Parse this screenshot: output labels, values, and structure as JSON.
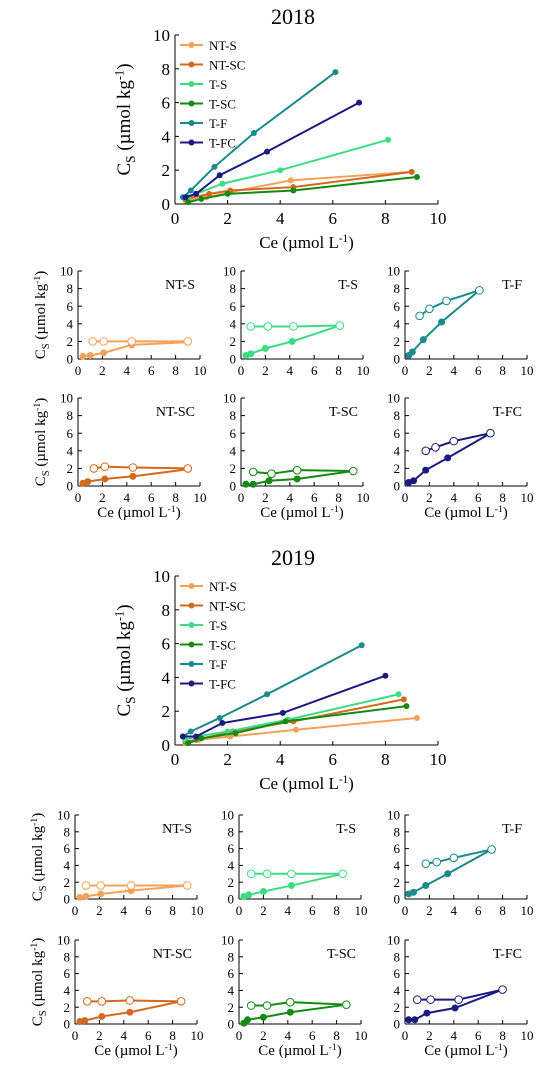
{
  "figure": {
    "title_2018": "2018",
    "title_2019": "2019"
  },
  "colors": {
    "NT-S": "#f4a259",
    "NT-SC": "#d2691e",
    "T-S": "#3ddc84",
    "T-SC": "#138b13",
    "T-F": "#1a8a8a",
    "T-FC": "#1a1a80"
  },
  "labels": {
    "ylabel": "Cs (µmol kg-1)",
    "xlabel": "Ce (µmol L-1)"
  },
  "chart_data": [
    {
      "id": "main2018",
      "type": "line",
      "title": "2018",
      "xlim": [
        0,
        10
      ],
      "ylim": [
        0,
        10
      ],
      "xticks": [
        0,
        2,
        4,
        6,
        8,
        10
      ],
      "yticks": [
        0,
        2,
        4,
        6,
        8,
        10
      ],
      "xlabel": "Ce (µmol L-1)",
      "ylabel": "Cs (µmol kg-1)",
      "legend": "top-left",
      "series": [
        {
          "name": "NT-S",
          "x": [
            0.4,
            1.2,
            2.1,
            4.4,
            9.0
          ],
          "y": [
            0.2,
            0.4,
            0.7,
            1.4,
            1.9
          ]
        },
        {
          "name": "NT-SC",
          "x": [
            0.4,
            1.3,
            2.1,
            4.5,
            9.0
          ],
          "y": [
            0.3,
            0.6,
            0.8,
            1.0,
            1.9
          ]
        },
        {
          "name": "T-S",
          "x": [
            0.5,
            0.8,
            1.8,
            4.0,
            8.1
          ],
          "y": [
            0.4,
            0.6,
            1.2,
            2.0,
            3.8
          ]
        },
        {
          "name": "T-SC",
          "x": [
            0.5,
            1.0,
            2.0,
            4.5,
            9.2
          ],
          "y": [
            0.1,
            0.3,
            0.6,
            0.8,
            1.6
          ]
        },
        {
          "name": "T-F",
          "x": [
            0.3,
            0.6,
            1.5,
            3.0,
            6.1
          ],
          "y": [
            0.4,
            0.8,
            2.2,
            4.2,
            7.8
          ]
        },
        {
          "name": "T-FC",
          "x": [
            0.4,
            0.8,
            1.7,
            3.5,
            7.0
          ],
          "y": [
            0.4,
            0.6,
            1.7,
            3.1,
            6.0
          ]
        }
      ]
    },
    {
      "id": "p18_ntS",
      "type": "line",
      "panel_label": "NT-S",
      "xlim": [
        0,
        10
      ],
      "ylim": [
        0,
        10
      ],
      "hollow_x": [
        1.2,
        2.1,
        4.4,
        9.0
      ],
      "hollow_y": [
        2.0,
        2.0,
        2.0,
        2.0
      ],
      "series": [
        {
          "name": "NT-S",
          "x": [
            0.4,
            1.0,
            2.1,
            4.4,
            9.0
          ],
          "y": [
            0.3,
            0.4,
            0.7,
            1.6,
            1.9
          ]
        }
      ]
    },
    {
      "id": "p18_tS",
      "type": "line",
      "panel_label": "T-S",
      "xlim": [
        0,
        10
      ],
      "ylim": [
        0,
        10
      ],
      "hollow_x": [
        0.8,
        2.2,
        4.3,
        8.1
      ],
      "hollow_y": [
        3.7,
        3.7,
        3.7,
        3.8
      ],
      "series": [
        {
          "name": "T-S",
          "x": [
            0.4,
            0.8,
            2.0,
            4.2,
            8.1
          ],
          "y": [
            0.4,
            0.6,
            1.2,
            2.0,
            3.8
          ]
        }
      ]
    },
    {
      "id": "p18_tF",
      "type": "line",
      "panel_label": "T-F",
      "xlim": [
        0,
        10
      ],
      "ylim": [
        0,
        10
      ],
      "hollow_x": [
        1.2,
        2.0,
        3.4,
        6.1
      ],
      "hollow_y": [
        4.9,
        5.7,
        6.6,
        7.8
      ],
      "series": [
        {
          "name": "T-F",
          "x": [
            0.3,
            0.6,
            1.5,
            3.0,
            6.1
          ],
          "y": [
            0.4,
            0.8,
            2.2,
            4.2,
            7.8
          ]
        }
      ]
    },
    {
      "id": "p18_ntSC",
      "type": "line",
      "panel_label": "NT-SC",
      "xlim": [
        0,
        10
      ],
      "ylim": [
        0,
        10
      ],
      "hollow_x": [
        1.3,
        2.2,
        4.5,
        9.0
      ],
      "hollow_y": [
        2.0,
        2.2,
        2.1,
        2.0
      ],
      "series": [
        {
          "name": "NT-SC",
          "x": [
            0.4,
            0.8,
            2.2,
            4.5,
            9.0
          ],
          "y": [
            0.3,
            0.5,
            0.8,
            1.1,
            1.9
          ]
        }
      ]
    },
    {
      "id": "p18_tSC",
      "type": "line",
      "panel_label": "T-SC",
      "xlim": [
        0,
        10
      ],
      "ylim": [
        0,
        10
      ],
      "hollow_x": [
        1.0,
        2.5,
        4.6,
        9.2
      ],
      "hollow_y": [
        1.6,
        1.4,
        1.8,
        1.7
      ],
      "series": [
        {
          "name": "T-SC",
          "x": [
            0.4,
            1.0,
            2.3,
            4.6,
            9.2
          ],
          "y": [
            0.2,
            0.2,
            0.6,
            0.8,
            1.7
          ]
        }
      ]
    },
    {
      "id": "p18_tFC",
      "type": "line",
      "panel_label": "T-FC",
      "xlim": [
        0,
        10
      ],
      "ylim": [
        0,
        10
      ],
      "hollow_x": [
        1.7,
        2.5,
        4.0,
        7.0
      ],
      "hollow_y": [
        4.0,
        4.4,
        5.1,
        6.0
      ],
      "series": [
        {
          "name": "T-FC",
          "x": [
            0.3,
            0.7,
            1.7,
            3.5,
            7.0
          ],
          "y": [
            0.4,
            0.6,
            1.8,
            3.2,
            6.0
          ]
        }
      ]
    },
    {
      "id": "main2019",
      "type": "line",
      "title": "2019",
      "xlim": [
        0,
        10
      ],
      "ylim": [
        0,
        10
      ],
      "xticks": [
        0,
        2,
        4,
        6,
        8,
        10
      ],
      "yticks": [
        0,
        2,
        4,
        6,
        8,
        10
      ],
      "xlabel": "Ce (µmol L-1)",
      "ylabel": "Cs (µmol kg-1)",
      "legend": "top-left",
      "series": [
        {
          "name": "NT-S",
          "x": [
            0.4,
            0.9,
            2.1,
            4.6,
            9.2
          ],
          "y": [
            0.1,
            0.3,
            0.5,
            0.9,
            1.6
          ]
        },
        {
          "name": "NT-SC",
          "x": [
            0.4,
            0.8,
            2.2,
            4.5,
            8.7
          ],
          "y": [
            0.2,
            0.3,
            0.8,
            1.4,
            2.7
          ]
        },
        {
          "name": "T-S",
          "x": [
            0.4,
            0.8,
            2.0,
            4.3,
            8.5
          ],
          "y": [
            0.3,
            0.5,
            0.8,
            1.5,
            3.0
          ]
        },
        {
          "name": "T-SC",
          "x": [
            0.5,
            1.0,
            2.3,
            4.2,
            8.8
          ],
          "y": [
            0.1,
            0.4,
            0.7,
            1.4,
            2.3
          ]
        },
        {
          "name": "T-F",
          "x": [
            0.3,
            0.6,
            1.7,
            3.5,
            7.1
          ],
          "y": [
            0.5,
            0.8,
            1.6,
            3.0,
            5.9
          ]
        },
        {
          "name": "T-FC",
          "x": [
            0.3,
            0.8,
            1.8,
            4.1,
            8.0
          ],
          "y": [
            0.5,
            0.5,
            1.3,
            1.9,
            4.1
          ]
        }
      ]
    },
    {
      "id": "p19_ntS",
      "type": "line",
      "panel_label": "NT-S",
      "xlim": [
        0,
        10
      ],
      "ylim": [
        0,
        10
      ],
      "hollow_x": [
        0.9,
        2.1,
        4.6,
        9.2
      ],
      "hollow_y": [
        1.6,
        1.6,
        1.6,
        1.6
      ],
      "series": [
        {
          "name": "NT-S",
          "x": [
            0.4,
            0.9,
            2.1,
            4.6,
            9.2
          ],
          "y": [
            0.2,
            0.3,
            0.6,
            1.0,
            1.6
          ]
        }
      ]
    },
    {
      "id": "p19_tS",
      "type": "line",
      "panel_label": "T-S",
      "xlim": [
        0,
        10
      ],
      "ylim": [
        0,
        10
      ],
      "hollow_x": [
        1.0,
        2.3,
        4.3,
        8.5
      ],
      "hollow_y": [
        3.0,
        3.0,
        3.0,
        3.0
      ],
      "series": [
        {
          "name": "T-S",
          "x": [
            0.4,
            0.8,
            2.0,
            4.3,
            8.5
          ],
          "y": [
            0.3,
            0.5,
            0.9,
            1.6,
            3.0
          ]
        }
      ]
    },
    {
      "id": "p19_tF",
      "type": "line",
      "panel_label": "T-F",
      "xlim": [
        0,
        10
      ],
      "ylim": [
        0,
        10
      ],
      "hollow_x": [
        1.7,
        2.6,
        4.0,
        7.1
      ],
      "hollow_y": [
        4.2,
        4.4,
        4.9,
        5.9
      ],
      "series": [
        {
          "name": "T-F",
          "x": [
            0.3,
            0.7,
            1.7,
            3.5,
            7.1
          ],
          "y": [
            0.6,
            0.8,
            1.6,
            3.0,
            5.9
          ]
        }
      ]
    },
    {
      "id": "p19_ntSC",
      "type": "line",
      "panel_label": "NT-SC",
      "xlim": [
        0,
        10
      ],
      "ylim": [
        0,
        10
      ],
      "hollow_x": [
        1.0,
        2.2,
        4.5,
        8.7
      ],
      "hollow_y": [
        2.7,
        2.7,
        2.8,
        2.7
      ],
      "series": [
        {
          "name": "NT-SC",
          "x": [
            0.4,
            0.8,
            2.2,
            4.5,
            8.7
          ],
          "y": [
            0.3,
            0.4,
            0.9,
            1.4,
            2.7
          ]
        }
      ]
    },
    {
      "id": "p19_tSC",
      "type": "line",
      "panel_label": "T-SC",
      "xlim": [
        0,
        10
      ],
      "ylim": [
        0,
        10
      ],
      "hollow_x": [
        1.0,
        2.3,
        4.2,
        8.8
      ],
      "hollow_y": [
        2.2,
        2.2,
        2.6,
        2.3
      ],
      "series": [
        {
          "name": "T-SC",
          "x": [
            0.4,
            0.7,
            2.0,
            4.2,
            8.8
          ],
          "y": [
            0.1,
            0.5,
            0.8,
            1.4,
            2.3
          ]
        }
      ]
    },
    {
      "id": "p19_tFC",
      "type": "line",
      "panel_label": "T-FC",
      "xlim": [
        0,
        10
      ],
      "ylim": [
        0,
        10
      ],
      "hollow_x": [
        1.0,
        2.1,
        4.4,
        8.0
      ],
      "hollow_y": [
        2.9,
        2.9,
        2.9,
        4.1
      ],
      "series": [
        {
          "name": "T-FC",
          "x": [
            0.3,
            0.8,
            1.8,
            4.1,
            8.0
          ],
          "y": [
            0.5,
            0.5,
            1.3,
            1.9,
            4.1
          ]
        }
      ]
    }
  ]
}
